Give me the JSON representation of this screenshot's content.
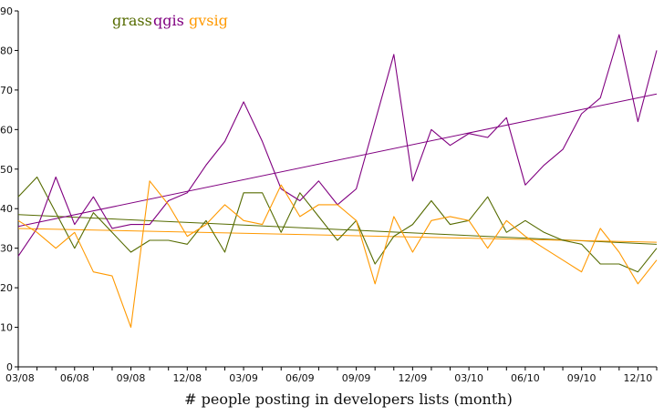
{
  "chart_data": {
    "type": "line",
    "xlabel": "# people posting in developers lists (month)",
    "x_tick_labels": [
      "03/08",
      "06/08",
      "09/08",
      "12/08",
      "03/09",
      "06/09",
      "09/09",
      "12/09",
      "03/10",
      "06/10",
      "09/10",
      "12/10"
    ],
    "y_ticks": [
      0,
      10,
      20,
      30,
      40,
      50,
      60,
      70,
      80,
      90
    ],
    "ylim": [
      0,
      90
    ],
    "grid": false,
    "legend_position": "top-left",
    "series": [
      {
        "name": "grass",
        "color": "#556b00",
        "values": [
          43,
          48,
          39,
          30,
          39,
          34,
          29,
          32,
          32,
          31,
          37,
          29,
          44,
          44,
          34,
          44,
          38,
          32,
          37,
          26,
          33,
          36,
          42,
          36,
          37,
          43,
          34,
          37,
          34,
          32,
          31,
          26,
          26,
          24,
          30
        ],
        "trend": [
          38.5,
          31.0
        ]
      },
      {
        "name": "qgis",
        "color": "#800080",
        "values": [
          28,
          35,
          48,
          36,
          43,
          35,
          36,
          36,
          42,
          44,
          51,
          57,
          67,
          57,
          45,
          42,
          47,
          41,
          45,
          62,
          79,
          47,
          60,
          56,
          59,
          58,
          63,
          46,
          51,
          55,
          64,
          68,
          84,
          62,
          80
        ],
        "trend": [
          35.5,
          69.0
        ]
      },
      {
        "name": "gvsig",
        "color": "#ff9900",
        "values": [
          37,
          34,
          30,
          34,
          24,
          23,
          10,
          47,
          41,
          33,
          36,
          41,
          37,
          36,
          46,
          38,
          41,
          41,
          37,
          21,
          38,
          29,
          37,
          38,
          37,
          30,
          37,
          33,
          30,
          27,
          24,
          35,
          29,
          21,
          27
        ],
        "trend": [
          35.0,
          31.5
        ]
      }
    ]
  }
}
